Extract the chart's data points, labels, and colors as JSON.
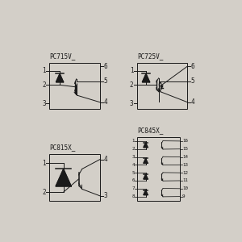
{
  "bg_color": "#d3cfc8",
  "line_color": "#1a1a1a",
  "text_color": "#1a1a1a",
  "fig_w": 3.0,
  "fig_h": 3.0,
  "dpi": 100,
  "diagrams": {
    "PC715V_": {
      "bx": 0.1,
      "by": 0.57,
      "bw": 0.27,
      "bh": 0.25
    },
    "PC725V_": {
      "bx": 0.57,
      "by": 0.57,
      "bw": 0.27,
      "bh": 0.25
    },
    "PC815X_": {
      "bx": 0.1,
      "by": 0.08,
      "bw": 0.27,
      "bh": 0.25
    },
    "PC845X_": {
      "bx": 0.57,
      "by": 0.08,
      "bw": 0.23,
      "bh": 0.34
    }
  }
}
